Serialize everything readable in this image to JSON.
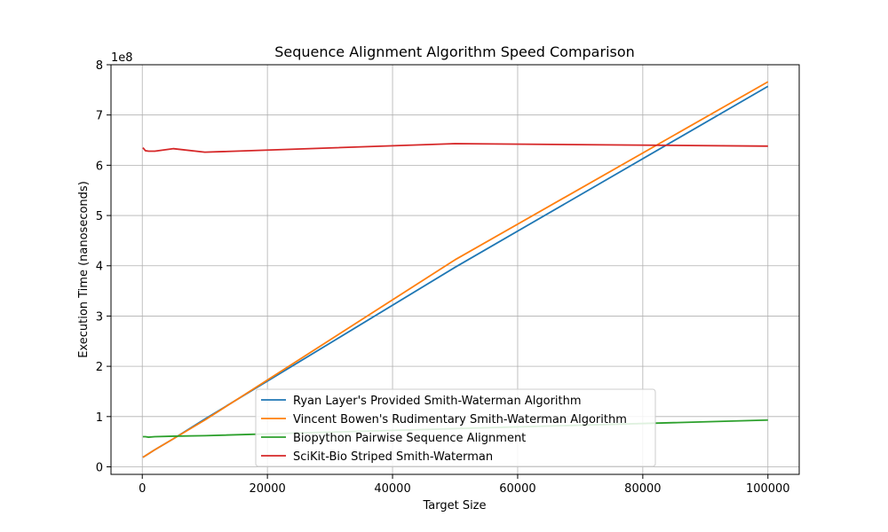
{
  "chart_data": {
    "type": "line",
    "title": "Sequence Alignment Algorithm Speed Comparison",
    "xlabel": "Target Size",
    "ylabel": "Execution Time (nanoseconds)",
    "y_offset_label": "1e8",
    "xlim": [
      -5000,
      105000
    ],
    "ylim": [
      -0.15,
      8.0
    ],
    "y_unit_multiplier": 100000000,
    "xticks": [
      0,
      20000,
      40000,
      60000,
      80000,
      100000
    ],
    "yticks": [
      0,
      1,
      2,
      3,
      4,
      5,
      6,
      7,
      8
    ],
    "grid": true,
    "legend_position": "lower-center",
    "series": [
      {
        "name": "Ryan Layer's Provided Smith-Waterman Algorithm",
        "color": "#1f77b4",
        "x": [
          100,
          500,
          1000,
          2000,
          5000,
          10000,
          50000,
          100000
        ],
        "y": [
          0.19,
          0.22,
          0.26,
          0.34,
          0.56,
          0.95,
          3.97,
          7.57
        ]
      },
      {
        "name": "Vincent Bowen's Rudimentary Smith-Waterman Algorithm",
        "color": "#ff7f0e",
        "x": [
          100,
          500,
          1000,
          2000,
          5000,
          10000,
          50000,
          100000
        ],
        "y": [
          0.19,
          0.22,
          0.26,
          0.34,
          0.56,
          0.93,
          4.12,
          7.66
        ]
      },
      {
        "name": "Biopython Pairwise Sequence Alignment",
        "color": "#2ca02c",
        "x": [
          100,
          500,
          1000,
          2000,
          5000,
          10000,
          50000,
          100000
        ],
        "y": [
          0.6,
          0.6,
          0.59,
          0.6,
          0.61,
          0.62,
          0.76,
          0.93
        ]
      },
      {
        "name": "SciKit-Bio Striped Smith-Waterman",
        "color": "#d62728",
        "x": [
          100,
          500,
          1000,
          2000,
          5000,
          10000,
          50000,
          100000
        ],
        "y": [
          6.35,
          6.29,
          6.28,
          6.28,
          6.33,
          6.26,
          6.43,
          6.38
        ]
      }
    ]
  }
}
